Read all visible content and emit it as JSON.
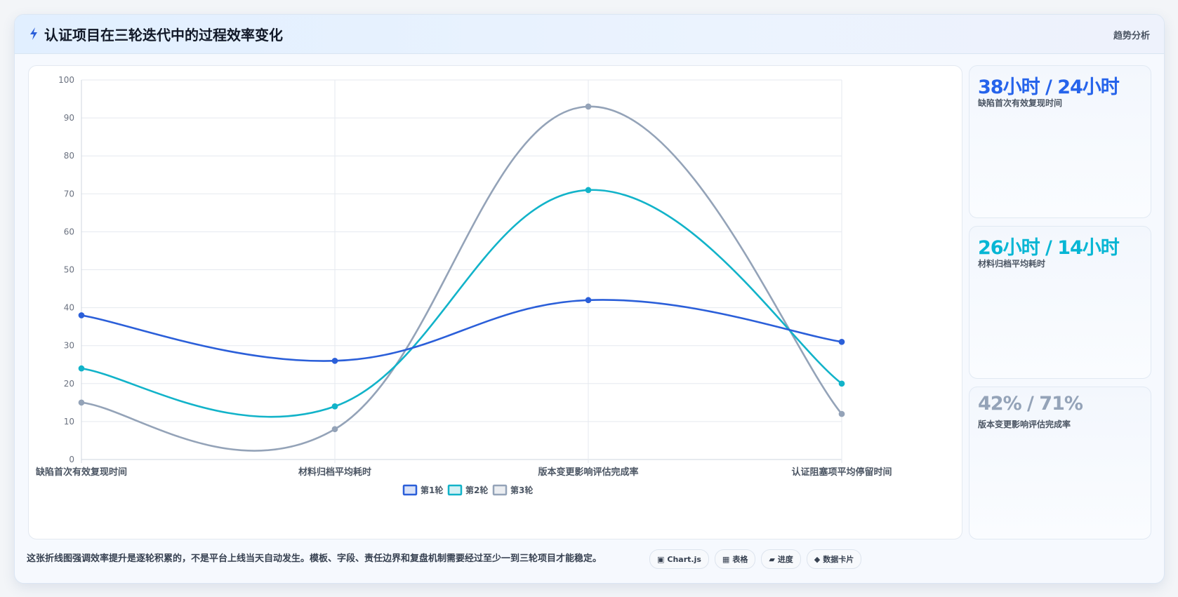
{
  "header": {
    "title": "认证项目在三轮迭代中的过程效率变化",
    "link": "趋势分析",
    "icon": "lightning-icon"
  },
  "chart_data": {
    "type": "line",
    "categories": [
      "缺陷首次有效复现时间",
      "材料归档平均耗时",
      "版本变更影响评估完成率",
      "认证阻塞项平均停留时间"
    ],
    "series": [
      {
        "name": "第1轮",
        "color": "#2b5fd9",
        "values": [
          38,
          26,
          42,
          31
        ]
      },
      {
        "name": "第2轮",
        "color": "#12b3c9",
        "values": [
          24,
          14,
          71,
          20
        ]
      },
      {
        "name": "第3轮",
        "color": "#94a3b8",
        "values": [
          15,
          8,
          93,
          12
        ]
      }
    ],
    "ylim": [
      0,
      100
    ],
    "yticks": [
      0,
      10,
      20,
      30,
      40,
      50,
      60,
      70,
      80,
      90,
      100
    ],
    "grid": true,
    "smooth": true,
    "legend_position": "bottom-center",
    "xlabel": "",
    "ylabel": ""
  },
  "stats": [
    {
      "value": "38小时 / 24小时",
      "label": "缺陷首次有效复现时间",
      "color": "#2563eb"
    },
    {
      "value": "26小时 / 14小时",
      "label": "材料归档平均耗时",
      "color": "#06b6d4"
    },
    {
      "value": "42% / 71%",
      "label": "版本变更影响评估完成率",
      "color": "#94a3b8"
    }
  ],
  "footer": {
    "note": "这张折线图强调效率提升是逐轮积累的，不是平台上线当天自动发生。模板、字段、责任边界和复盘机制需要经过至少一到三轮项目才能稳定。",
    "tags": [
      {
        "icon": "▣",
        "icon_name": "chart-icon",
        "label": "Chart.js"
      },
      {
        "icon": "▦",
        "icon_name": "table-icon",
        "label": "表格"
      },
      {
        "icon": "▰",
        "icon_name": "progress-icon",
        "label": "进度"
      },
      {
        "icon": "◆",
        "icon_name": "diamond-icon",
        "label": "数据卡片"
      }
    ]
  }
}
